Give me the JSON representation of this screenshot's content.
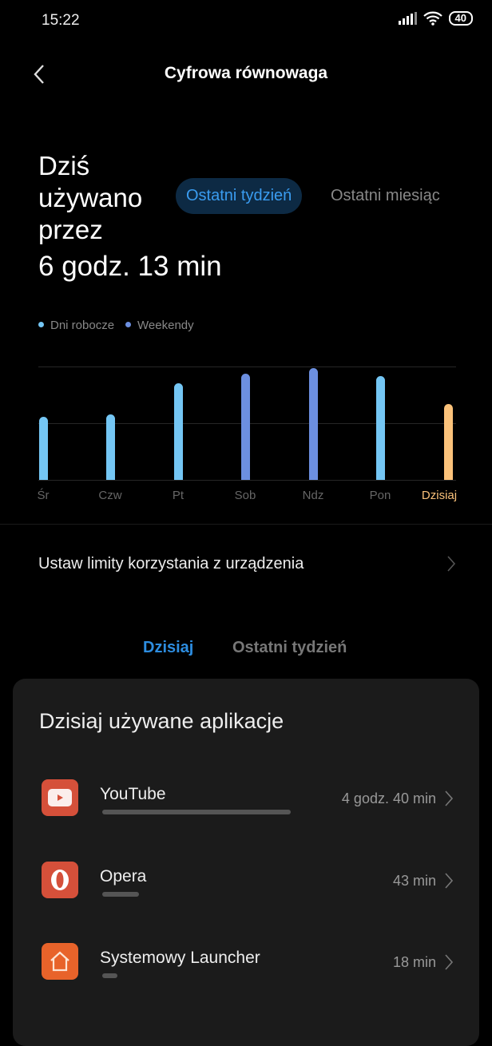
{
  "status": {
    "time": "15:22",
    "battery": "40"
  },
  "header": {
    "title": "Cyfrowa równowaga"
  },
  "summary": {
    "label": "Dziś używano przez",
    "total": "6 godz. 13 min"
  },
  "range_tabs": [
    {
      "label": "Ostatni tydzień",
      "selected": true
    },
    {
      "label": "Ostatni miesiąc",
      "selected": false
    }
  ],
  "chart_data": {
    "type": "bar",
    "categories": [
      "Śr",
      "Czw",
      "Pt",
      "Sob",
      "Ndz",
      "Pon",
      "Dzisiaj"
    ],
    "values": [
      5.2,
      5.4,
      7.9,
      8.7,
      9.2,
      8.5,
      6.2
    ],
    "value_unit": "hours (estimated)",
    "legend": [
      {
        "name": "Dni robocze",
        "color": "#74c6f4"
      },
      {
        "name": "Weekendy",
        "color": "#6c8fe0"
      }
    ],
    "bar_colors": [
      "#74c6f4",
      "#74c6f4",
      "#74c6f4",
      "#6c8fe0",
      "#6c8fe0",
      "#74c6f4",
      "#fbc27a"
    ],
    "highlight_color": "#fbc27a",
    "ylim": [
      0,
      9.3
    ],
    "grid": true,
    "legend_placement": "top-left"
  },
  "limits": {
    "label": "Ustaw limity korzystania z urządzenia"
  },
  "list_tabs": [
    {
      "label": "Dzisiaj",
      "selected": true
    },
    {
      "label": "Ostatni tydzień",
      "selected": false
    }
  ],
  "apps_card": {
    "title": "Dzisiaj używane aplikacje",
    "apps": [
      {
        "name": "YouTube",
        "time": "4 godz. 40 min",
        "minutes": 280,
        "icon": "youtube-icon",
        "color": "#d5503a"
      },
      {
        "name": "Opera",
        "time": "43 min",
        "minutes": 43,
        "icon": "opera-icon",
        "color": "#d5503a"
      },
      {
        "name": "Systemowy Launcher",
        "time": "18 min",
        "minutes": 18,
        "icon": "home-icon",
        "color": "#e8632a"
      }
    ]
  }
}
